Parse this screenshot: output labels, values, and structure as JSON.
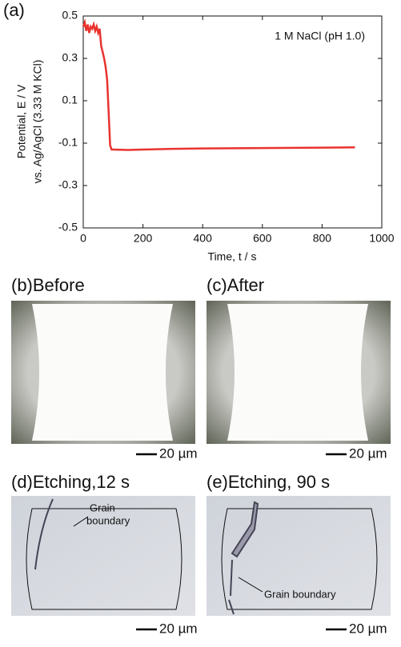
{
  "chart_data": {
    "type": "line",
    "title": "(a)",
    "annotation": "1 M  NaCl (pH 1.0)",
    "x_label": "Time, t / s",
    "y_label": [
      "Potential, E / V",
      "vs. Ag/AgCl (3.33 M KCl)"
    ],
    "x": [
      0,
      5,
      10,
      15,
      20,
      25,
      30,
      35,
      40,
      45,
      50,
      55,
      60,
      65,
      70,
      75,
      80,
      85,
      90,
      95,
      100,
      150,
      200,
      300,
      400,
      500,
      600,
      700,
      800,
      910
    ],
    "values": [
      0.45,
      0.47,
      0.43,
      0.46,
      0.42,
      0.45,
      0.44,
      0.46,
      0.43,
      0.45,
      0.42,
      0.44,
      0.36,
      0.33,
      0.3,
      0.26,
      0.2,
      0.05,
      -0.11,
      -0.13,
      -0.13,
      -0.132,
      -0.13,
      -0.127,
      -0.125,
      -0.124,
      -0.123,
      -0.122,
      -0.121,
      -0.12
    ],
    "color": "#e8332f",
    "xlim": [
      0,
      1000
    ],
    "xticks": [
      0,
      200,
      400,
      600,
      800,
      1000
    ],
    "ylim": [
      -0.5,
      0.5
    ],
    "yticks": [
      -0.5,
      -0.3,
      -0.1,
      0.1,
      0.3,
      0.5
    ]
  },
  "panels": [
    {
      "label": "(b)Before",
      "scale_bar": "20 µm"
    },
    {
      "label": "(c)After",
      "scale_bar": "20 µm"
    },
    {
      "label": "(d)Etching,12 s",
      "scale_bar": "20 µm",
      "annotation": [
        "Grain",
        "boundary"
      ]
    },
    {
      "label": "(e)Etching, 90 s",
      "scale_bar": "20 µm",
      "annotation": [
        "Grain boundary"
      ]
    }
  ]
}
